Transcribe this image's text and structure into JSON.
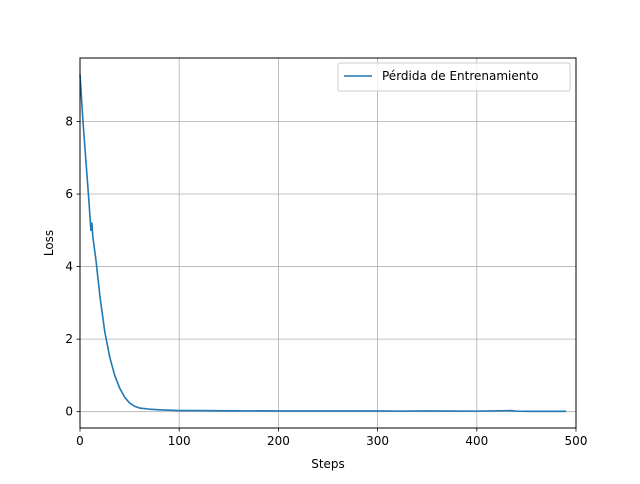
{
  "chart_data": {
    "type": "line",
    "title": "",
    "xlabel": "Steps",
    "ylabel": "Loss",
    "xlim": [
      0,
      500
    ],
    "ylim": [
      -0.45,
      9.75
    ],
    "x_ticks": [
      0,
      100,
      200,
      300,
      400,
      500
    ],
    "y_ticks": [
      0,
      2,
      4,
      6,
      8
    ],
    "x_tick_labels": [
      "0",
      "100",
      "200",
      "300",
      "400",
      "500"
    ],
    "y_tick_labels": [
      "0",
      "2",
      "4",
      "6",
      "8"
    ],
    "grid": true,
    "legend_position": "upper-right",
    "series": [
      {
        "name": "Pérdida de Entrenamiento",
        "color": "#1f77b4",
        "x": [
          0,
          3,
          6,
          9,
          11,
          12,
          13,
          16,
          20,
          25,
          30,
          35,
          40,
          45,
          50,
          55,
          60,
          70,
          80,
          90,
          100,
          120,
          150,
          200,
          250,
          300,
          320,
          350,
          400,
          435,
          440,
          450,
          490
        ],
        "y": [
          9.3,
          8.0,
          6.9,
          5.8,
          5.0,
          5.2,
          4.8,
          4.2,
          3.2,
          2.2,
          1.5,
          1.0,
          0.65,
          0.4,
          0.24,
          0.15,
          0.1,
          0.07,
          0.05,
          0.04,
          0.03,
          0.03,
          0.025,
          0.02,
          0.02,
          0.02,
          0.015,
          0.02,
          0.015,
          0.03,
          0.015,
          0.01,
          0.01
        ]
      }
    ]
  }
}
